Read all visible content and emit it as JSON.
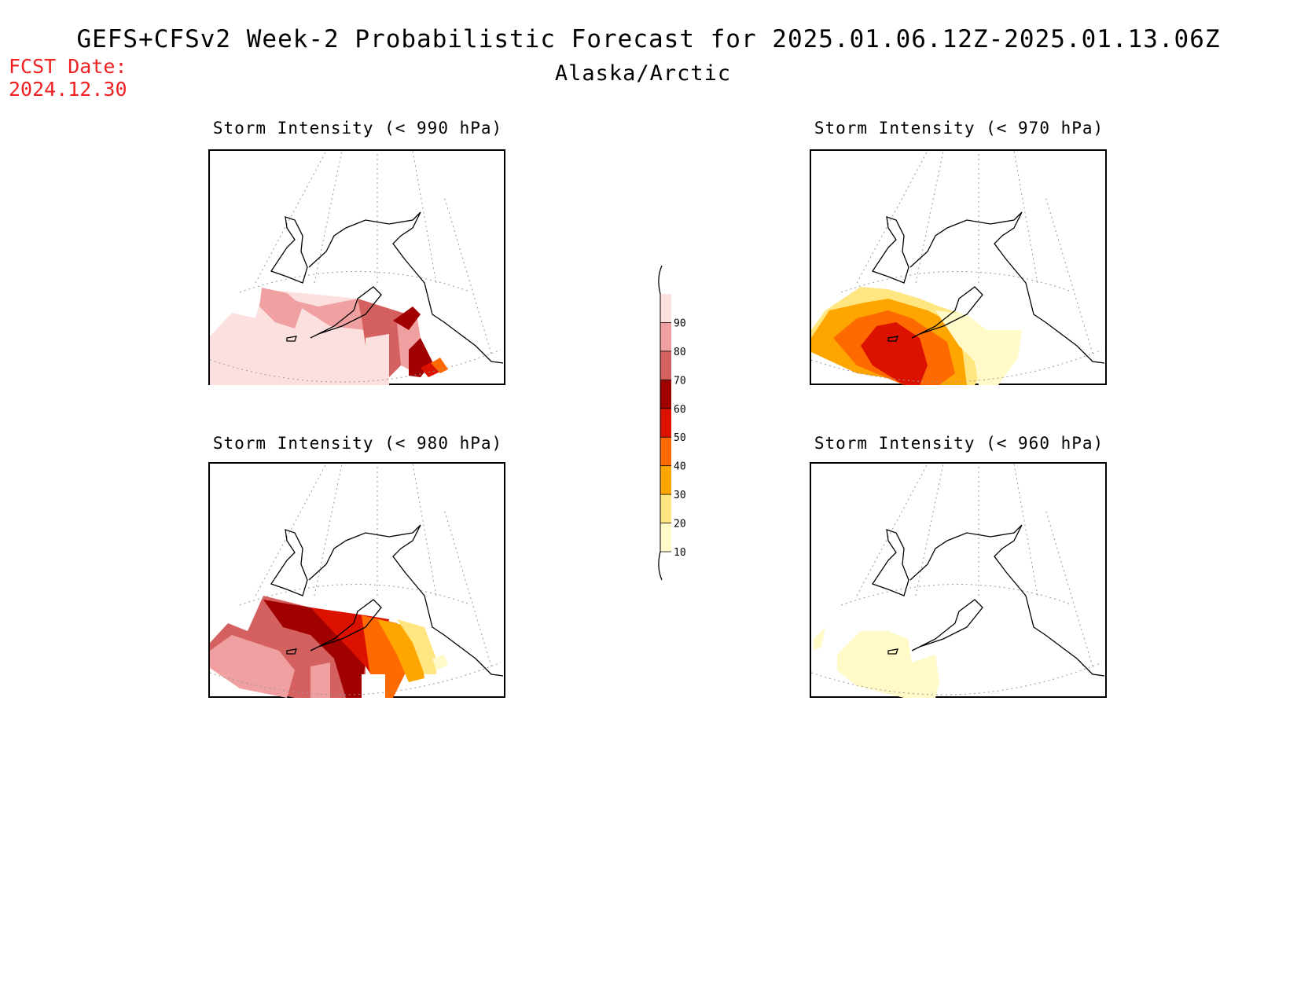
{
  "header": {
    "title": "GEFS+CFSv2 Week-2 Probabilistic Forecast for 2025.01.06.12Z-2025.01.13.06Z",
    "subtitle": "Alaska/Arctic"
  },
  "forecast_date": {
    "label": "FCST Date:",
    "value": "2024.12.30"
  },
  "panels": [
    {
      "id": "p990",
      "title": "Storm Intensity (< 990 hPa)"
    },
    {
      "id": "p970",
      "title": "Storm Intensity (< 970 hPa)"
    },
    {
      "id": "p980",
      "title": "Storm Intensity (< 980 hPa)"
    },
    {
      "id": "p960",
      "title": "Storm Intensity (< 960 hPa)"
    }
  ],
  "colorbar": {
    "levels": [
      "10",
      "20",
      "30",
      "40",
      "50",
      "60",
      "70",
      "80",
      "90"
    ],
    "colors": [
      "#fffac8",
      "#ffe680",
      "#ffa500",
      "#ff6a00",
      "#dd1100",
      "#a00000",
      "#d46060",
      "#f0a0a0",
      "#fce0e0"
    ]
  }
}
